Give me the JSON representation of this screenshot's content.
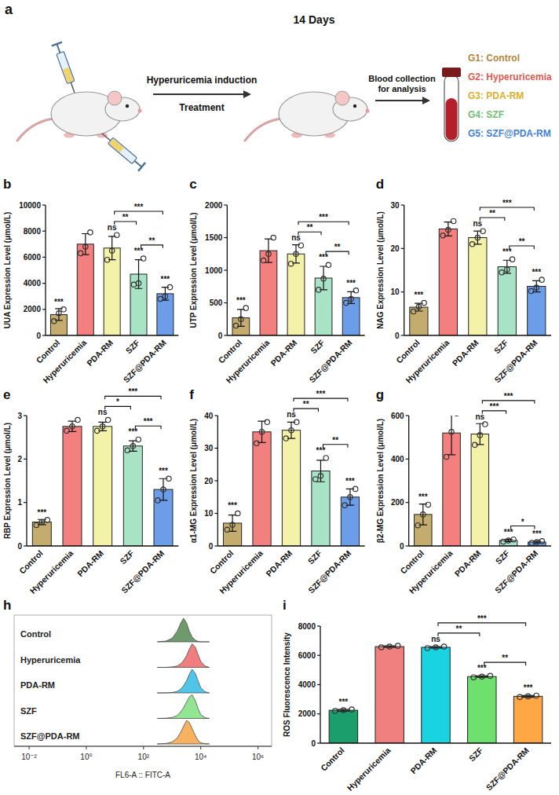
{
  "schematic": {
    "label": "a",
    "duration": "14 Days",
    "step1_top": "Hyperuricemia induction",
    "step1_bottom": "Treatment",
    "step2": "Blood collection for analysis",
    "groups": [
      {
        "label": "G1: Control",
        "color": "#b5853a"
      },
      {
        "label": "G2: Hyperuricemia",
        "color": "#e05a50"
      },
      {
        "label": "G3: PDA-RM",
        "color": "#d9b02c"
      },
      {
        "label": "G4: SZF",
        "color": "#6fbf73"
      },
      {
        "label": "G5: SZF@PDA-RM",
        "color": "#3f7fd9"
      }
    ]
  },
  "chart_data": [
    {
      "type": "bar",
      "label": "b",
      "y_label": "UUA Expression Level (μmol/L)",
      "categories": [
        "Control",
        "Hyperuricemia",
        "PDA-RM",
        "SZF",
        "SZF@PDA-RM"
      ],
      "values": [
        1600,
        7000,
        6700,
        4700,
        3200
      ],
      "errors": [
        450,
        800,
        900,
        1100,
        500
      ],
      "points": [
        [
          1100,
          1700,
          2000
        ],
        [
          6300,
          6800,
          7900
        ],
        [
          5800,
          6500,
          7700
        ],
        [
          3900,
          4000,
          5900
        ],
        [
          2800,
          3000,
          3700
        ]
      ],
      "colors": [
        "#c4ab6e",
        "#f47f7f",
        "#f3f2a8",
        "#a8e3c5",
        "#6c9de8"
      ],
      "ylim": [
        0,
        10000
      ],
      "yticks": [
        0,
        2000,
        4000,
        6000,
        8000,
        10000
      ],
      "significance": [
        "***",
        null,
        "ns",
        "***",
        "***"
      ],
      "comparisons": [
        {
          "groups": [
            "PDA-RM",
            "SZF"
          ],
          "label": "**"
        },
        {
          "groups": [
            "PDA-RM",
            "SZF@PDA-RM"
          ],
          "label": "***"
        },
        {
          "groups": [
            "SZF",
            "SZF@PDA-RM"
          ],
          "label": "**"
        }
      ]
    },
    {
      "type": "bar",
      "label": "c",
      "y_label": "UTP Expression Level (μmol/L)",
      "categories": [
        "Control",
        "Hyperuricemia",
        "PDA-RM",
        "SZF",
        "SZF@PDA-RM"
      ],
      "values": [
        270,
        1300,
        1250,
        880,
        580
      ],
      "errors": [
        130,
        180,
        140,
        180,
        90
      ],
      "points": [
        [
          150,
          250,
          420
        ],
        [
          1150,
          1250,
          1500
        ],
        [
          1100,
          1250,
          1380
        ],
        [
          700,
          870,
          1080
        ],
        [
          500,
          560,
          690
        ]
      ],
      "colors": [
        "#c4ab6e",
        "#f47f7f",
        "#f3f2a8",
        "#a8e3c5",
        "#6c9de8"
      ],
      "ylim": [
        0,
        2000
      ],
      "yticks": [
        0,
        500,
        1000,
        1500,
        2000
      ],
      "significance": [
        "***",
        null,
        "ns",
        "***",
        "***"
      ],
      "comparisons": [
        {
          "groups": [
            "PDA-RM",
            "SZF"
          ],
          "label": "**"
        },
        {
          "groups": [
            "PDA-RM",
            "SZF@PDA-RM"
          ],
          "label": "***"
        },
        {
          "groups": [
            "SZF",
            "SZF@PDA-RM"
          ],
          "label": "**"
        }
      ]
    },
    {
      "type": "bar",
      "label": "d",
      "y_label": "NAG Expression Level (μmol/L)",
      "categories": [
        "Control",
        "Hyperuricemia",
        "PDA-RM",
        "SZF",
        "SZF@PDA-RM"
      ],
      "values": [
        6.5,
        24.5,
        22.5,
        15.8,
        11.3
      ],
      "errors": [
        0.9,
        1.6,
        1.5,
        1.5,
        1.3
      ],
      "points": [
        [
          5.5,
          6.6,
          7.5
        ],
        [
          23,
          24.3,
          26.3
        ],
        [
          21,
          22.5,
          24
        ],
        [
          14.5,
          15.2,
          17.5
        ],
        [
          10.2,
          11,
          12.8
        ]
      ],
      "colors": [
        "#c4ab6e",
        "#f47f7f",
        "#f3f2a8",
        "#a8e3c5",
        "#6c9de8"
      ],
      "ylim": [
        0,
        30
      ],
      "yticks": [
        0,
        10,
        20,
        30
      ],
      "significance": [
        "***",
        null,
        "ns",
        "***",
        "***"
      ],
      "comparisons": [
        {
          "groups": [
            "PDA-RM",
            "SZF"
          ],
          "label": "**"
        },
        {
          "groups": [
            "PDA-RM",
            "SZF@PDA-RM"
          ],
          "label": "***"
        },
        {
          "groups": [
            "SZF",
            "SZF@PDA-RM"
          ],
          "label": "**"
        }
      ]
    },
    {
      "type": "bar",
      "label": "e",
      "y_label": "RBP Expression Level (μmol/L)",
      "categories": [
        "Control",
        "Hyperuricemia",
        "PDA-RM",
        "SZF",
        "SZF@PDA-RM"
      ],
      "values": [
        0.55,
        2.75,
        2.75,
        2.3,
        1.3
      ],
      "errors": [
        0.06,
        0.12,
        0.1,
        0.12,
        0.25
      ],
      "points": [
        [
          0.48,
          0.55,
          0.6
        ],
        [
          2.65,
          2.75,
          2.9
        ],
        [
          2.65,
          2.75,
          2.9
        ],
        [
          2.2,
          2.3,
          2.45
        ],
        [
          1.05,
          1.3,
          1.55
        ]
      ],
      "colors": [
        "#c4ab6e",
        "#f47f7f",
        "#f3f2a8",
        "#a8e3c5",
        "#6c9de8"
      ],
      "ylim": [
        0,
        3
      ],
      "yticks": [
        0,
        1,
        2,
        3
      ],
      "significance": [
        "***",
        null,
        "ns",
        "***",
        "***"
      ],
      "comparisons": [
        {
          "groups": [
            "PDA-RM",
            "SZF"
          ],
          "label": "*"
        },
        {
          "groups": [
            "PDA-RM",
            "SZF@PDA-RM"
          ],
          "label": "***"
        },
        {
          "groups": [
            "SZF",
            "SZF@PDA-RM"
          ],
          "label": "***"
        }
      ]
    },
    {
      "type": "bar",
      "label": "f",
      "y_label": "α1-MG Expression Level (μmol/L)",
      "categories": [
        "Control",
        "Hyperuricemia",
        "PDA-RM",
        "SZF",
        "SZF@PDA-RM"
      ],
      "values": [
        7,
        35,
        35.5,
        23,
        15
      ],
      "errors": [
        2.5,
        3.3,
        2.5,
        3.3,
        2.5
      ],
      "points": [
        [
          5,
          6.5,
          10
        ],
        [
          31.5,
          35,
          38
        ],
        [
          33,
          35.5,
          38
        ],
        [
          20.5,
          21.5,
          27
        ],
        [
          12.5,
          15,
          17.5
        ]
      ],
      "colors": [
        "#c4ab6e",
        "#f47f7f",
        "#f3f2a8",
        "#a8e3c5",
        "#6c9de8"
      ],
      "ylim": [
        0,
        40
      ],
      "yticks": [
        0,
        10,
        20,
        30,
        40
      ],
      "significance": [
        "***",
        null,
        "ns",
        "***",
        "***"
      ],
      "comparisons": [
        {
          "groups": [
            "PDA-RM",
            "SZF"
          ],
          "label": "**"
        },
        {
          "groups": [
            "PDA-RM",
            "SZF@PDA-RM"
          ],
          "label": "***"
        },
        {
          "groups": [
            "SZF",
            "SZF@PDA-RM"
          ],
          "label": "**"
        }
      ]
    },
    {
      "type": "bar",
      "label": "g",
      "y_label": "β2-MG Expression Level (μmol/L)",
      "categories": [
        "Control",
        "Hyperuricemia",
        "PDA-RM",
        "SZF",
        "SZF@PDA-RM"
      ],
      "values": [
        145,
        520,
        515,
        25,
        18
      ],
      "errors": [
        48,
        100,
        48,
        5,
        4
      ],
      "points": [
        [
          95,
          145,
          190
        ],
        [
          410,
          525,
          610
        ],
        [
          465,
          510,
          560
        ],
        [
          20,
          25,
          30
        ],
        [
          14,
          18,
          22
        ]
      ],
      "colors": [
        "#c4ab6e",
        "#f47f7f",
        "#f3f2a8",
        "#a8e3c5",
        "#6c9de8"
      ],
      "ylim": [
        0,
        600
      ],
      "yticks": [
        0,
        200,
        400,
        600
      ],
      "significance": [
        "***",
        null,
        "ns",
        "***",
        "***"
      ],
      "comparisons": [
        {
          "groups": [
            "PDA-RM",
            "SZF"
          ],
          "label": "***"
        },
        {
          "groups": [
            "PDA-RM",
            "SZF@PDA-RM"
          ],
          "label": "***"
        },
        {
          "groups": [
            "SZF",
            "SZF@PDA-RM"
          ],
          "label": "*"
        }
      ]
    },
    {
      "type": "ridgeline",
      "label": "h",
      "x_label": "FL6-A :: FITC-A",
      "log": "x",
      "tick_labels": "x",
      "x": [
        300,
        600,
        1000,
        1500,
        2000,
        2500,
        3200,
        4000,
        5000,
        6500,
        8000,
        10000,
        14000,
        20000
      ],
      "xlim": [
        0.003,
        3000000
      ],
      "xticks": [
        {
          "value": 0.01,
          "label": "10⁻²"
        },
        {
          "value": 1,
          "label": "10⁰"
        },
        {
          "value": 100,
          "label": "10²"
        },
        {
          "value": 10000,
          "label": "10⁴"
        },
        {
          "value": 1000000,
          "label": "10⁶"
        }
      ],
      "ylim": [
        0,
        100
      ],
      "series": [
        {
          "name": "Control",
          "color": "#5f8f5c",
          "values": [
            0,
            3,
            15,
            45,
            80,
            100,
            80,
            45,
            20,
            7,
            2,
            0,
            0,
            0
          ]
        },
        {
          "name": "Hyperuricemia",
          "color": "#ef7070",
          "values": [
            0,
            0,
            2,
            6,
            15,
            28,
            50,
            78,
            100,
            85,
            55,
            25,
            6,
            0
          ]
        },
        {
          "name": "PDA-RM",
          "color": "#3dbfe6",
          "values": [
            0,
            0,
            2,
            6,
            16,
            30,
            52,
            80,
            100,
            82,
            52,
            22,
            5,
            0
          ]
        },
        {
          "name": "SZF",
          "color": "#86e286",
          "values": [
            0,
            1,
            4,
            12,
            28,
            45,
            70,
            92,
            100,
            75,
            42,
            16,
            3,
            0
          ]
        },
        {
          "name": "SZF@PDA-RM",
          "color": "#f5a850",
          "values": [
            0,
            2,
            8,
            25,
            50,
            75,
            100,
            90,
            65,
            35,
            15,
            5,
            1,
            0
          ]
        }
      ]
    },
    {
      "type": "bar",
      "label": "i",
      "y_label": "ROS Fluorescence Intensity",
      "categories": [
        "Control",
        "Hyperuricemia",
        "PDA-RM",
        "SZF",
        "SZF@PDA-RM"
      ],
      "values": [
        2250,
        6600,
        6550,
        4550,
        3200
      ],
      "errors": [
        60,
        50,
        50,
        50,
        60
      ],
      "points": [
        [
          2200,
          2250,
          2300
        ],
        [
          6550,
          6600,
          6650
        ],
        [
          6500,
          6550,
          6600
        ],
        [
          4500,
          4550,
          4600
        ],
        [
          3150,
          3200,
          3250
        ]
      ],
      "colors": [
        "#1b9e6b",
        "#f08080",
        "#19d3e0",
        "#6ee06e",
        "#ffa645"
      ],
      "ylim": [
        0,
        8000
      ],
      "yticks": [
        0,
        2000,
        4000,
        6000,
        8000
      ],
      "significance": [
        "***",
        null,
        "ns",
        "***",
        "***"
      ],
      "comparisons": [
        {
          "groups": [
            "PDA-RM",
            "SZF"
          ],
          "label": "**"
        },
        {
          "groups": [
            "PDA-RM",
            "SZF@PDA-RM"
          ],
          "label": "***"
        },
        {
          "groups": [
            "SZF",
            "SZF@PDA-RM"
          ],
          "label": "**"
        }
      ]
    }
  ]
}
